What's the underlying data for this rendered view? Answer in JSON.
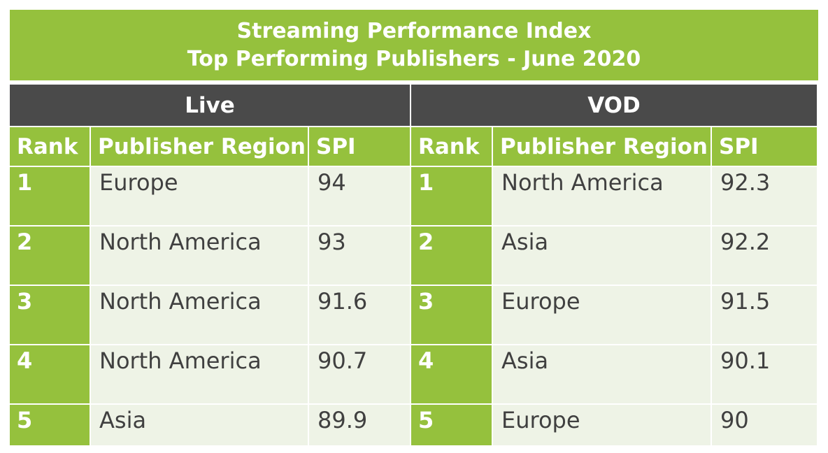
{
  "title_lines": [
    "Streaming Performance Index",
    "Top Performing Publishers - June 2020"
  ],
  "colors": {
    "accent_green": "#95c13d",
    "header_dark": "#4a4a4a",
    "cell_bg": "#eef3e6"
  },
  "chart_data": {
    "type": "table",
    "title": "Streaming Performance Index Top Performing Publishers - June 2020",
    "groups": [
      "Live",
      "VOD"
    ],
    "columns": [
      "Rank",
      "Publisher Region",
      "SPI"
    ],
    "live": [
      {
        "rank": "1",
        "region": "Europe",
        "spi": "94"
      },
      {
        "rank": "2",
        "region": "North America",
        "spi": "93"
      },
      {
        "rank": "3",
        "region": "North America",
        "spi": "91.6"
      },
      {
        "rank": "4",
        "region": "North America",
        "spi": "90.7"
      },
      {
        "rank": "5",
        "region": "Asia",
        "spi": "89.9"
      }
    ],
    "vod": [
      {
        "rank": "1",
        "region": "North America",
        "spi": "92.3"
      },
      {
        "rank": "2",
        "region": "Asia",
        "spi": "92.2"
      },
      {
        "rank": "3",
        "region": "Europe",
        "spi": "91.5"
      },
      {
        "rank": "4",
        "region": "Asia",
        "spi": "90.1"
      },
      {
        "rank": "5",
        "region": "Europe",
        "spi": "90"
      }
    ]
  }
}
